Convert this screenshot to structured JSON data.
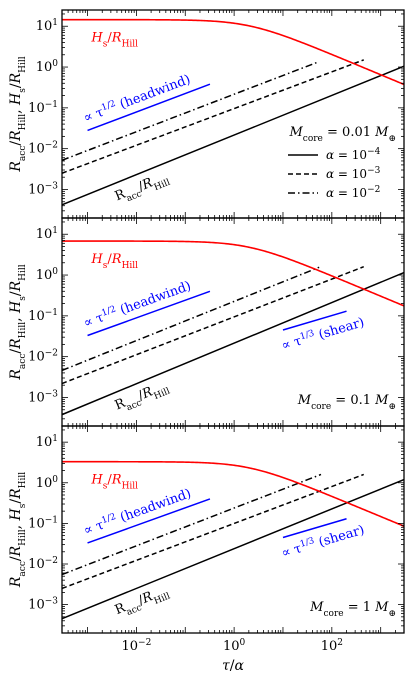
{
  "chart_data": {
    "type": "line",
    "shared_x_axis": true,
    "x_scale": "log",
    "y_scale": "log",
    "xlim": [
      0.0003,
      3000
    ],
    "ylim": [
      0.0002,
      25
    ],
    "xticks": [
      {
        "value": 0.01,
        "base": "10",
        "exp": "−2"
      },
      {
        "value": 1,
        "base": "10",
        "exp": "0"
      },
      {
        "value": 100,
        "base": "10",
        "exp": "2"
      }
    ],
    "yticks": [
      {
        "value": 0.001,
        "base": "10",
        "exp": "−3"
      },
      {
        "value": 0.01,
        "base": "10",
        "exp": "−2"
      },
      {
        "value": 0.1,
        "base": "10",
        "exp": "−1"
      },
      {
        "value": 1,
        "base": "10",
        "exp": "0"
      },
      {
        "value": 10,
        "base": "10",
        "exp": "1"
      }
    ],
    "xlabel": "τ/α",
    "ylabel": "R_acc/R_Hill, H_s/R_Hill",
    "legend": {
      "title": "M_core = 0.01 M_⊕",
      "entries": [
        {
          "label": "α = 10^−4",
          "style": "solid"
        },
        {
          "label": "α = 10^−3",
          "style": "dashed"
        },
        {
          "label": "α = 10^−2",
          "style": "dashdot"
        }
      ]
    },
    "colors": {
      "hs": "#ff0000",
      "acc": "#000000",
      "scaling": "#0000ff"
    },
    "panels": [
      {
        "mcore_label": "M_core = 0.01 M_⊕",
        "hs": {
          "label": "H_s/R_Hill",
          "plateau": 14.5,
          "knee": 1,
          "slope": 0.5
        },
        "acc_label": "R_acc/R_Hill",
        "acc_series": [
          {
            "alpha": "1e-4",
            "style": "solid",
            "x": [
              0.0003,
              3000
            ],
            "y": [
              0.00042,
              1.05
            ]
          },
          {
            "alpha": "1e-3",
            "style": "dashed",
            "x": [
              0.0003,
              450
            ],
            "y": [
              0.0025,
              1.5
            ]
          },
          {
            "alpha": "1e-2",
            "style": "dashdot",
            "x": [
              0.0003,
              50
            ],
            "y": [
              0.0052,
              1.3
            ]
          }
        ],
        "headwind": {
          "label": "∝ τ^(1/2) (headwind)",
          "x": [
            0.001,
            0.32
          ],
          "y": [
            0.028,
            0.38
          ]
        }
      },
      {
        "mcore_label": "M_core = 0.1 M_⊕",
        "hs": {
          "label": "H_s/R_Hill",
          "plateau": 6.8,
          "knee": 1,
          "slope": 0.5
        },
        "acc_label": "R_acc/R_Hill",
        "acc_series": [
          {
            "alpha": "1e-4",
            "style": "solid",
            "x": [
              0.0003,
              3000
            ],
            "y": [
              0.00038,
              1.15
            ]
          },
          {
            "alpha": "1e-3",
            "style": "dashed",
            "x": [
              0.0003,
              450
            ],
            "y": [
              0.0022,
              1.6
            ]
          },
          {
            "alpha": "1e-2",
            "style": "dashdot",
            "x": [
              0.0003,
              55
            ],
            "y": [
              0.0046,
              1.55
            ]
          }
        ],
        "headwind": {
          "label": "∝ τ^(1/2) (headwind)",
          "x": [
            0.001,
            0.32
          ],
          "y": [
            0.033,
            0.4
          ]
        },
        "shear": {
          "label": "∝ τ^(1/3) (shear)",
          "x": [
            10,
            200
          ],
          "y": [
            0.045,
            0.13
          ]
        }
      },
      {
        "mcore_label": "M_core = 1 M_⊕",
        "hs": {
          "label": "H_s/R_Hill",
          "plateau": 3.3,
          "knee": 1,
          "slope": 0.5
        },
        "acc_label": "R_acc/R_Hill",
        "acc_series": [
          {
            "alpha": "1e-4",
            "style": "solid",
            "x": [
              0.0003,
              3000
            ],
            "y": [
              0.00045,
              1.2
            ]
          },
          {
            "alpha": "1e-3",
            "style": "dashed",
            "x": [
              0.0003,
              450
            ],
            "y": [
              0.0025,
              1.6
            ]
          },
          {
            "alpha": "1e-2",
            "style": "dashdot",
            "x": [
              0.0003,
              60
            ],
            "y": [
              0.0055,
              1.6
            ]
          }
        ],
        "headwind": {
          "label": "∝ τ^(1/2) (headwind)",
          "x": [
            0.001,
            0.32
          ],
          "y": [
            0.033,
            0.4
          ]
        },
        "shear": {
          "label": "∝ τ^(1/3) (shear)",
          "x": [
            10,
            200
          ],
          "y": [
            0.045,
            0.13
          ]
        }
      }
    ]
  }
}
